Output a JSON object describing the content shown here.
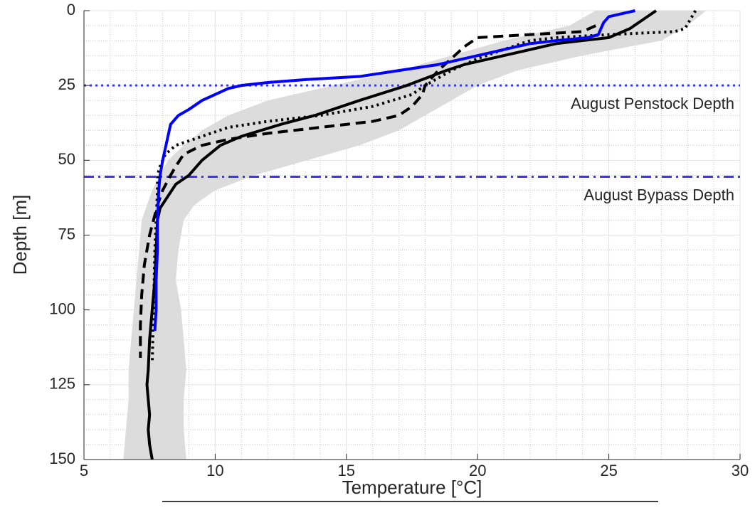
{
  "chart_data": {
    "type": "profile",
    "xlabel": "Temperature [°C]",
    "ylabel": "Depth [m]",
    "xlim": [
      5,
      30
    ],
    "xticks": [
      5,
      10,
      15,
      20,
      25,
      30
    ],
    "xminorticks": [
      6,
      7,
      8,
      9,
      11,
      12,
      13,
      14,
      16,
      17,
      18,
      19,
      21,
      22,
      23,
      24,
      26,
      27,
      28,
      29
    ],
    "ylim": [
      0,
      150
    ],
    "yreverse": true,
    "yticks": [
      0,
      25,
      50,
      75,
      100,
      125,
      150
    ],
    "yminorticks": [
      5,
      10,
      15,
      20,
      30,
      35,
      40,
      45,
      55,
      60,
      65,
      70,
      80,
      85,
      90,
      95,
      105,
      110,
      115,
      120,
      130,
      135,
      140,
      145
    ],
    "grid": true,
    "minor_grid": true,
    "band": {
      "color": "#dcdcdc",
      "values": [
        0,
        5,
        10,
        15,
        20,
        25,
        30,
        35,
        40,
        45,
        50,
        55,
        60,
        65,
        70,
        80,
        90,
        100,
        110,
        120,
        130,
        140,
        150
      ],
      "lower": [
        24.5,
        23.5,
        21.0,
        19.0,
        17.0,
        14.5,
        12.0,
        10.5,
        9.5,
        8.8,
        8.2,
        7.9,
        7.6,
        7.4,
        7.2,
        7.1,
        7.0,
        6.9,
        6.8,
        6.7,
        6.7,
        6.6,
        6.5
      ],
      "upper": [
        28.7,
        28.0,
        27.0,
        24.0,
        21.5,
        20.0,
        19.0,
        18.0,
        17.0,
        15.5,
        13.5,
        11.5,
        10.0,
        9.2,
        8.8,
        8.6,
        8.5,
        8.7,
        8.8,
        8.9,
        8.8,
        8.8,
        8.9
      ]
    },
    "series": [
      {
        "color": "#000000",
        "style": "solid",
        "x": [
          26.8,
          26.3,
          25.8,
          25.0,
          24.0,
          23.0,
          22.5,
          21.5,
          20.5,
          19.5,
          18.8,
          17.3,
          15.5,
          13.8,
          12.5,
          11.0,
          10.2,
          9.5,
          9.0,
          8.5,
          8.2,
          7.9,
          7.8,
          7.75,
          7.7,
          7.6,
          7.5,
          7.45,
          7.4,
          7.45,
          7.5,
          7.45,
          7.5,
          7.6
        ],
        "values": [
          0,
          3,
          6,
          9,
          10,
          11,
          12,
          14,
          16,
          18,
          20,
          25,
          30,
          35,
          38,
          42,
          45,
          50,
          55,
          58,
          62,
          66,
          70,
          80,
          90,
          100,
          110,
          120,
          125,
          130,
          135,
          140,
          145,
          150
        ]
      },
      {
        "color": "#000000",
        "style": "dashed",
        "x": [
          24.5,
          24.0,
          22.0,
          20.0,
          19.5,
          19.0,
          18.5,
          18.0,
          17.9,
          17.5,
          17.0,
          16.0,
          14.0,
          12.0,
          10.5,
          9.5,
          8.8,
          8.5,
          8.3,
          8.0,
          7.8,
          7.5,
          7.3,
          7.2,
          7.15,
          7.15
        ],
        "values": [
          5,
          7,
          8,
          9,
          12,
          16,
          20,
          25,
          28,
          32,
          35,
          37,
          39,
          41,
          43,
          45,
          48,
          52,
          55,
          60,
          65,
          75,
          85,
          95,
          105,
          116
        ]
      },
      {
        "color": "#000000",
        "style": "dotted",
        "x": [
          28.3,
          28.1,
          27.9,
          27.5,
          25.0,
          23.0,
          22.0,
          21.0,
          20.0,
          19.0,
          18.0,
          17.5,
          16.0,
          14.0,
          12.0,
          10.5,
          9.5,
          8.5,
          8.1,
          7.9,
          7.8,
          7.8,
          7.75,
          7.7,
          7.65,
          7.6
        ],
        "values": [
          0,
          3,
          6,
          7,
          8,
          9,
          10,
          13,
          16,
          20,
          25,
          28,
          32,
          35,
          37,
          39,
          42,
          45,
          48,
          52,
          55,
          60,
          70,
          80,
          100,
          118
        ]
      },
      {
        "color": "#0000ff",
        "style": "solid",
        "x": [
          26.0,
          25.5,
          25.0,
          24.8,
          24.7,
          24.6,
          24.2,
          23.0,
          22.0,
          21.5,
          20.5,
          19.5,
          18.5,
          17.0,
          15.5,
          13.5,
          12.0,
          11.0,
          10.5,
          10.0,
          9.5,
          9.0,
          8.6,
          8.3,
          8.2,
          8.1,
          8.0,
          7.9,
          7.85,
          7.8,
          7.8,
          7.75,
          7.75,
          7.7
        ],
        "values": [
          0,
          1,
          2,
          4,
          6,
          8,
          9,
          10,
          11,
          12,
          14,
          16,
          18,
          20,
          22,
          23,
          24,
          25,
          26,
          28,
          30,
          33,
          35,
          38,
          42,
          46,
          50,
          55,
          60,
          70,
          80,
          90,
          100,
          107
        ]
      }
    ],
    "reference_lines": [
      {
        "value": 25,
        "style": "dotted",
        "color": "#3b3bdd",
        "label": "August Penstock Depth"
      },
      {
        "value": 55.5,
        "style": "dashdot",
        "color": "#3b3bdd",
        "label": "August Bypass Depth"
      }
    ]
  }
}
